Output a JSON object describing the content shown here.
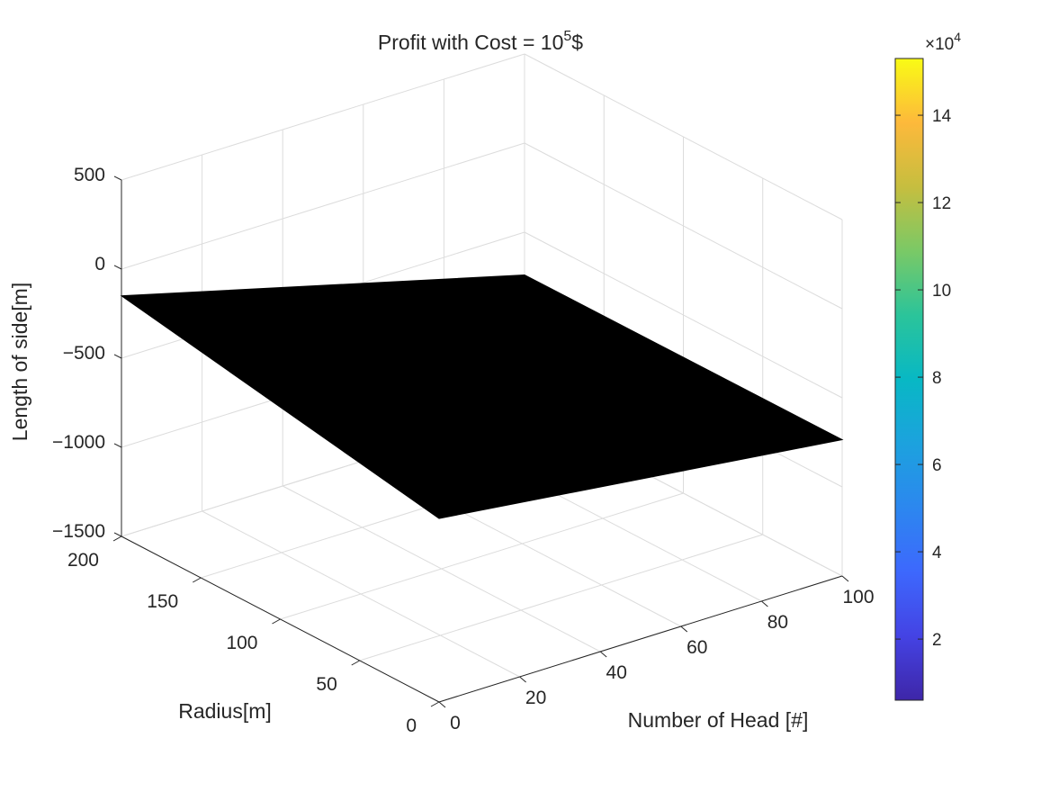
{
  "chart_data": {
    "type": "surface",
    "title": {
      "prefix": "Profit with Cost = 10",
      "superscript": "5",
      "suffix": "$"
    },
    "xlabel": "Number of Head [#]",
    "ylabel": "Radius[m]",
    "zlabel": "Length of side[m]",
    "xlim": [
      0,
      100
    ],
    "ylim": [
      0,
      200
    ],
    "zlim": [
      -1500,
      500
    ],
    "x_ticks": [
      0,
      20,
      40,
      60,
      80,
      100
    ],
    "x_tick_labels": [
      "0",
      "20",
      "40",
      "60",
      "80",
      "100"
    ],
    "y_ticks": [
      0,
      50,
      100,
      150,
      200
    ],
    "y_tick_labels": [
      "0",
      "50",
      "100",
      "150",
      "200"
    ],
    "z_ticks": [
      -1500,
      -1000,
      -500,
      0,
      500
    ],
    "z_tick_labels": [
      "−1500",
      "−1000",
      "−500",
      "0",
      "500"
    ],
    "grid": true,
    "surface": {
      "color": "#000000",
      "corners": [
        {
          "x": 0,
          "y": 200,
          "z": -150
        },
        {
          "x": 0,
          "y": 0,
          "z": -470
        },
        {
          "x": 100,
          "y": 0,
          "z": -735
        },
        {
          "x": 100,
          "y": 200,
          "z": -740
        }
      ]
    },
    "colorbar": {
      "colormap": "parula",
      "range": [
        0.6,
        15.3
      ],
      "ticks": [
        2,
        4,
        6,
        8,
        10,
        12,
        14
      ],
      "tick_labels": [
        "2",
        "4",
        "6",
        "8",
        "10",
        "12",
        "14"
      ],
      "exponent_base": "×10",
      "exponent": "4"
    }
  }
}
